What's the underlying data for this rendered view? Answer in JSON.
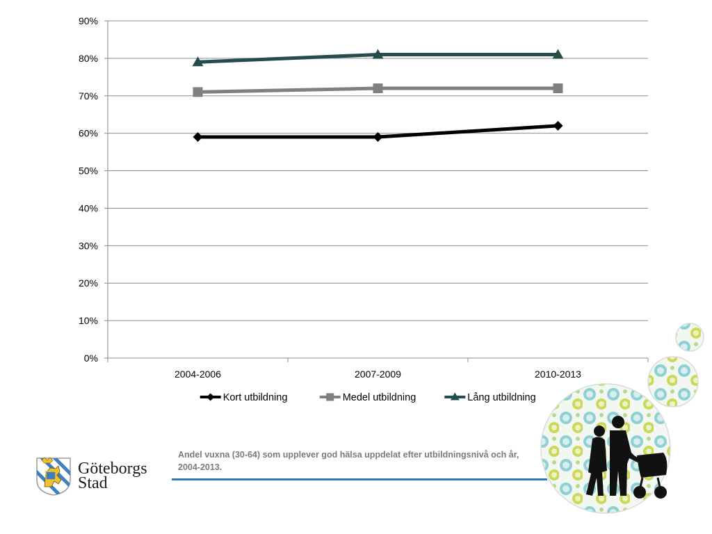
{
  "chart_data": {
    "type": "line",
    "categories": [
      "2004-2006",
      "2007-2009",
      "2010-2013"
    ],
    "y_ticks": [
      "0%",
      "10%",
      "20%",
      "30%",
      "40%",
      "50%",
      "60%",
      "70%",
      "80%",
      "90%"
    ],
    "ylim": [
      0,
      90
    ],
    "grid": true,
    "legend_position": "bottom",
    "series": [
      {
        "name": "Kort utbildning",
        "values": [
          59,
          59,
          62
        ],
        "color": "#000000",
        "marker": "diamond"
      },
      {
        "name": "Medel utbildning",
        "values": [
          71,
          72,
          72
        ],
        "color": "#808080",
        "marker": "square"
      },
      {
        "name": "Lång utbildning",
        "values": [
          79,
          81,
          81
        ],
        "color": "#264d4d",
        "marker": "triangle"
      }
    ]
  },
  "caption": "Andel vuxna (30-64) som upplever god hälsa uppdelat efter utbildningsnivå och år, 2004-2013.",
  "logo": {
    "line1": "Göteborgs",
    "line2": "Stad"
  },
  "colors": {
    "accent_rule": "#2e7bb8",
    "grid": "#8c8c8c"
  }
}
